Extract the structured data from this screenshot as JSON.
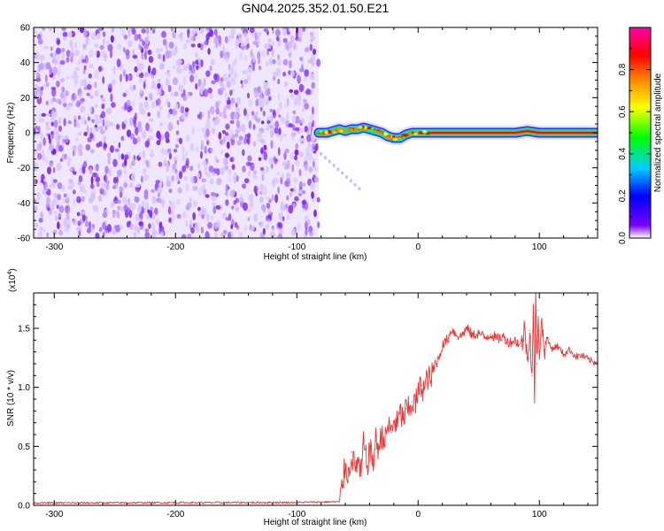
{
  "title": "GN04.2025.352.01.50.E21",
  "chart_data": [
    {
      "type": "heatmap",
      "title": "GN04.2025.352.01.50.E21",
      "xlabel": "Height of straight line (km)",
      "ylabel": "Frequency (Hz)",
      "xlim": [
        -317,
        148
      ],
      "ylim": [
        -60,
        60
      ],
      "xticks": [
        "-300",
        "-200",
        "-100",
        "0",
        "100"
      ],
      "xtick_values": [
        -300,
        -200,
        -100,
        0,
        100
      ],
      "yticks": [
        "60",
        "40",
        "20",
        "0",
        "-20",
        "-40",
        "-60"
      ],
      "ytick_values": [
        60,
        40,
        20,
        0,
        -20,
        -40,
        -60
      ],
      "noise_region_x": [
        -317,
        -82
      ],
      "noise_amplitude_range": [
        0.0,
        0.2
      ],
      "signal_band": {
        "x": [
          -82,
          -75,
          -70,
          -65,
          -60,
          -55,
          -50,
          -45,
          -40,
          -35,
          -30,
          -25,
          -20,
          -15,
          -10,
          -5,
          0,
          10,
          40,
          60,
          80,
          90,
          100,
          148
        ],
        "freq": [
          0,
          0,
          1,
          2,
          1,
          2,
          2,
          3,
          2,
          1,
          0,
          -2,
          -3,
          -3,
          -1,
          0,
          0,
          0,
          0,
          0,
          0,
          1,
          0,
          0
        ],
        "peak_amplitude": 1.0
      },
      "colorbar": {
        "label": "Normalized spectral amplitude",
        "range": [
          0.0,
          1.0
        ],
        "ticks": [
          "0.0",
          "0.2",
          "0.4",
          "0.6",
          "0.8"
        ],
        "tick_values": [
          0.0,
          0.2,
          0.4,
          0.6,
          0.8
        ],
        "colors": [
          "#ffffff",
          "#7a00ff",
          "#0000ff",
          "#00ccff",
          "#00ff00",
          "#ffff00",
          "#ff8800",
          "#ff0000",
          "#ff00aa"
        ]
      }
    },
    {
      "type": "line",
      "xlabel": "Height of straight line (km)",
      "ylabel": "SNR (10 * v/v)",
      "y_multiplier": "(x10",
      "y_multiplier_exp": "4",
      "y_multiplier_close": ")",
      "xlim": [
        -317,
        148
      ],
      "ylim": [
        0,
        18000
      ],
      "xticks": [
        "-300",
        "-200",
        "-100",
        "0",
        "100"
      ],
      "xtick_values": [
        -300,
        -200,
        -100,
        0,
        100
      ],
      "yticks": [
        "0.0",
        "0.5",
        "1.0",
        "1.5"
      ],
      "ytick_values": [
        0,
        5000,
        10000,
        15000
      ],
      "series": [
        {
          "name": "SNR",
          "color": "#ee3333",
          "x": [
            -317,
            -100,
            -65,
            -62,
            -60,
            -57,
            -55,
            -52,
            -50,
            -47,
            -45,
            -42,
            -40,
            -37,
            -35,
            -32,
            -30,
            -27,
            -25,
            -22,
            -20,
            -17,
            -15,
            -12,
            -10,
            -7,
            -5,
            -2,
            0,
            3,
            5,
            8,
            10,
            13,
            15,
            18,
            20,
            25,
            28,
            30,
            35,
            40,
            45,
            50,
            55,
            60,
            65,
            70,
            75,
            80,
            85,
            88,
            90,
            92,
            94,
            95,
            96,
            97,
            98,
            99,
            100,
            102,
            104,
            106,
            110,
            115,
            120,
            125,
            130,
            135,
            140,
            145,
            148
          ],
          "y": [
            200,
            250,
            300,
            2000,
            3500,
            2500,
            4500,
            3000,
            3800,
            2500,
            5200,
            3300,
            4800,
            3600,
            5500,
            4800,
            6200,
            5500,
            6800,
            6200,
            7200,
            6800,
            7800,
            7300,
            8200,
            8000,
            8800,
            8600,
            9500,
            10200,
            9800,
            10900,
            10500,
            11500,
            12000,
            12800,
            13500,
            14200,
            15000,
            14600,
            14300,
            15000,
            14400,
            14600,
            14200,
            14500,
            14100,
            14300,
            13800,
            14000,
            13500,
            15000,
            12500,
            14800,
            11000,
            16200,
            9500,
            17500,
            12000,
            16500,
            13000,
            15500,
            13200,
            14200,
            13300,
            13500,
            12800,
            13200,
            12600,
            12700,
            12400,
            12100,
            12300
          ]
        }
      ]
    }
  ]
}
